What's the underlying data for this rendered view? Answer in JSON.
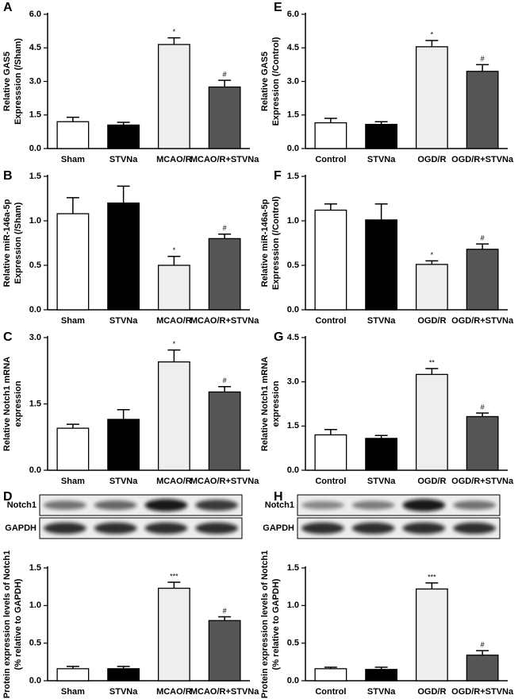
{
  "chart_data": [
    {
      "type": "bar",
      "panel": "A",
      "ylabel": [
        "Relative GAS5",
        "Expresssion (/Sham)"
      ],
      "categories": [
        "Sham",
        "STVNa",
        "MCAO/R",
        "MCAO/R+STVNa"
      ],
      "values": [
        1.2,
        1.05,
        4.65,
        2.75
      ],
      "errors": [
        0.2,
        0.12,
        0.3,
        0.3
      ],
      "annotations": [
        null,
        null,
        "*",
        "#"
      ],
      "colors": [
        "#ffffff",
        "#000000",
        "#eeeeee",
        "#555555"
      ],
      "ylim": [
        0,
        6
      ],
      "yticks": [
        {
          "value": 0,
          "label": "0.0"
        },
        1.5,
        {
          "value": 3,
          "label": "3.0"
        },
        4.5,
        {
          "value": 6,
          "label": "6.0"
        }
      ]
    },
    {
      "type": "bar",
      "panel": "B",
      "ylabel": [
        "Relative miR-146a-5p",
        "Expression (/Sham)"
      ],
      "categories": [
        "Sham",
        "STVNa",
        "MCAO/R",
        "MCAO/R+STVNa"
      ],
      "values": [
        1.08,
        1.2,
        0.5,
        0.8
      ],
      "errors": [
        0.18,
        0.19,
        0.1,
        0.05
      ],
      "annotations": [
        null,
        null,
        "*",
        "#"
      ],
      "colors": [
        "#ffffff",
        "#000000",
        "#eeeeee",
        "#555555"
      ],
      "ylim": [
        0,
        1.5
      ],
      "yticks": [
        {
          "value": 0,
          "label": "0.0"
        },
        0.5,
        {
          "value": 1,
          "label": "1.0"
        },
        1.5
      ]
    },
    {
      "type": "bar",
      "panel": "C",
      "ylabel": [
        "Relative Notch1 mRNA",
        "expression"
      ],
      "categories": [
        "Sham",
        "STVNa",
        "MCAO/R",
        "MCAO/R+STVNa"
      ],
      "values": [
        0.95,
        1.15,
        2.45,
        1.77
      ],
      "errors": [
        0.09,
        0.22,
        0.27,
        0.12
      ],
      "annotations": [
        null,
        null,
        "*",
        "#"
      ],
      "colors": [
        "#ffffff",
        "#000000",
        "#eeeeee",
        "#555555"
      ],
      "ylim": [
        0,
        3
      ],
      "yticks": [
        {
          "value": 0,
          "label": "0.0"
        },
        1.5,
        {
          "value": 3,
          "label": "3.0"
        }
      ]
    },
    {
      "type": "bar",
      "panel": "D",
      "blot_labels": [
        "Notch1",
        "GAPDH"
      ],
      "ylabel": [
        "Protein expression levels of Notch1",
        "(% relative to GAPDH)"
      ],
      "categories": [
        "Sham",
        "STVNa",
        "MCAO/R",
        "MCAO/R+STVNa"
      ],
      "values": [
        0.16,
        0.16,
        1.23,
        0.8
      ],
      "errors": [
        0.03,
        0.03,
        0.08,
        0.05
      ],
      "annotations": [
        null,
        null,
        "***",
        "#"
      ],
      "colors": [
        "#ffffff",
        "#000000",
        "#eeeeee",
        "#555555"
      ],
      "ylim": [
        0,
        1.5
      ],
      "yticks": [
        {
          "value": 0,
          "label": "0.0"
        },
        0.5,
        {
          "value": 1,
          "label": "1.0"
        },
        1.5
      ]
    },
    {
      "type": "bar",
      "panel": "E",
      "ylabel": [
        "Relative GAS5",
        "Expression (/Control)"
      ],
      "categories": [
        "Control",
        "STVNa",
        "OGD/R",
        "OGD/R+STVNa"
      ],
      "values": [
        1.15,
        1.08,
        4.55,
        3.45
      ],
      "errors": [
        0.2,
        0.12,
        0.28,
        0.3
      ],
      "annotations": [
        null,
        null,
        "*",
        "#"
      ],
      "colors": [
        "#ffffff",
        "#000000",
        "#eeeeee",
        "#555555"
      ],
      "ylim": [
        0,
        6
      ],
      "yticks": [
        {
          "value": 0,
          "label": "0.0"
        },
        1.5,
        {
          "value": 3,
          "label": "3.0"
        },
        4.5,
        {
          "value": 6,
          "label": "6.0"
        }
      ]
    },
    {
      "type": "bar",
      "panel": "F",
      "ylabel": [
        "Relative miR-146a-5p",
        "Expresssion (/Control)"
      ],
      "categories": [
        "Control",
        "STVNa",
        "OGD/R",
        "OGD/R+STVNa"
      ],
      "values": [
        1.12,
        1.01,
        0.51,
        0.68
      ],
      "errors": [
        0.07,
        0.18,
        0.04,
        0.06
      ],
      "annotations": [
        null,
        null,
        "*",
        "#"
      ],
      "colors": [
        "#ffffff",
        "#000000",
        "#eeeeee",
        "#555555"
      ],
      "ylim": [
        0,
        1.5
      ],
      "yticks": [
        {
          "value": 0,
          "label": "0.0"
        },
        0.5,
        {
          "value": 1,
          "label": "1.0"
        },
        1.5
      ]
    },
    {
      "type": "bar",
      "panel": "G",
      "ylabel": [
        "Relative Notch1 mRNA",
        "expression"
      ],
      "categories": [
        "Control",
        "STVNa",
        "OGD/R",
        "OGD/R+STVNa"
      ],
      "values": [
        1.2,
        1.08,
        3.25,
        1.82
      ],
      "errors": [
        0.18,
        0.1,
        0.2,
        0.12
      ],
      "annotations": [
        null,
        null,
        "**",
        "#"
      ],
      "colors": [
        "#ffffff",
        "#000000",
        "#eeeeee",
        "#555555"
      ],
      "ylim": [
        0,
        4.5
      ],
      "yticks": [
        {
          "value": 0,
          "label": "0.0"
        },
        1.5,
        {
          "value": 3,
          "label": "3.0"
        },
        4.5
      ]
    },
    {
      "type": "bar",
      "panel": "H",
      "blot_labels": [
        "Notch1",
        "GAPDH"
      ],
      "ylabel": [
        "Protein expression levels of Notch1",
        "(% relative to GAPDH)"
      ],
      "categories": [
        "Control",
        "STVNa",
        "OGD/R",
        "OGD/R+STVNa"
      ],
      "values": [
        0.16,
        0.15,
        1.22,
        0.34
      ],
      "errors": [
        0.02,
        0.03,
        0.08,
        0.06
      ],
      "annotations": [
        null,
        null,
        "***",
        "#"
      ],
      "colors": [
        "#ffffff",
        "#000000",
        "#eeeeee",
        "#555555"
      ],
      "ylim": [
        0,
        1.5
      ],
      "yticks": [
        {
          "value": 0,
          "label": "0.0"
        },
        0.5,
        {
          "value": 1,
          "label": "1.0"
        },
        1.5
      ]
    }
  ]
}
